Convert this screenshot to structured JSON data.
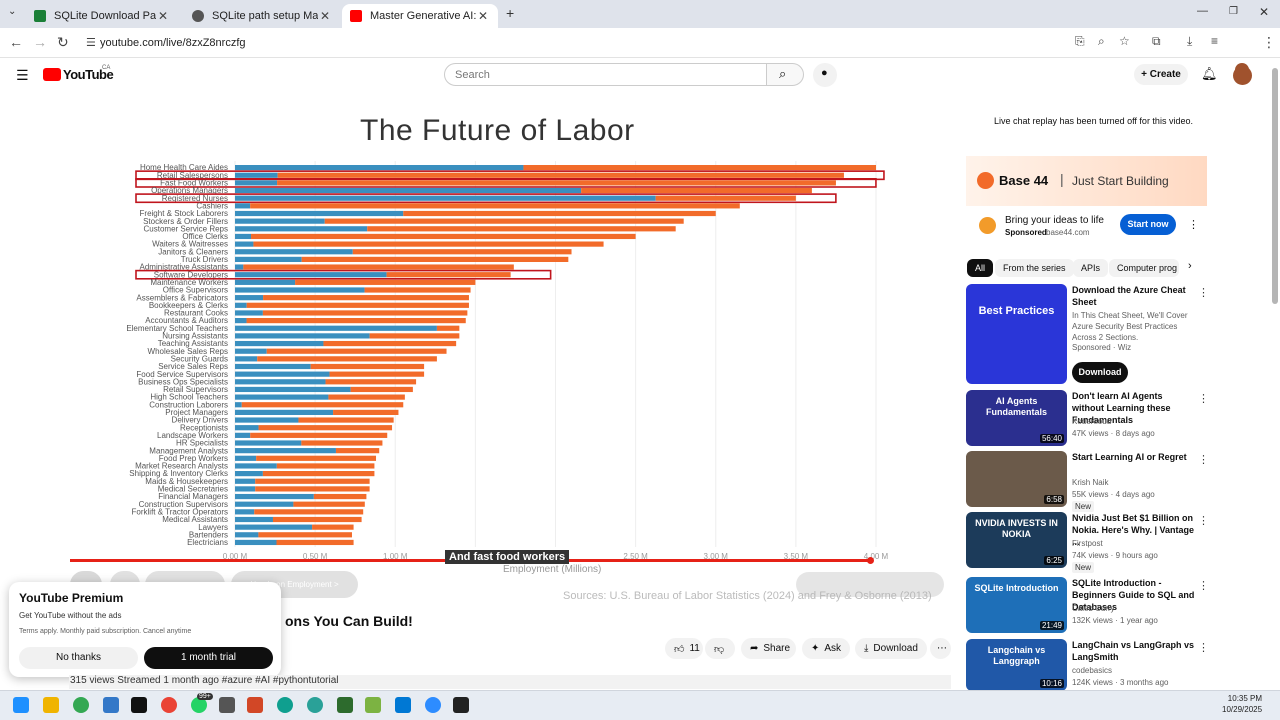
{
  "browser": {
    "tabs": [
      {
        "title": "SQLite Download Page",
        "active": false,
        "color": "#1a7f37"
      },
      {
        "title": "SQLite path setup Mac",
        "active": false,
        "color": "#444444"
      },
      {
        "title": "Master Generative AI: Real-Life",
        "active": true,
        "color": "#ff0000"
      }
    ],
    "url": "youtube.com/live/8zxZ8nrczfg"
  },
  "youtube": {
    "logo": "YouTube",
    "region": "CA",
    "search_placeholder": "Search",
    "create_label": "Create"
  },
  "video": {
    "chart_title": "The Future of Labor",
    "caption": "And fast food workers",
    "xaxis_label": "Employment (Millions)",
    "sources": "Sources: U.S. Bureau of Labor Statistics (2024) and Frey & Osborne (2013)",
    "chapter_label": "Hands-on Employment >",
    "title_fragment": "ons You Can Build!",
    "likes": "11",
    "actions": {
      "share": "Share",
      "ask": "Ask",
      "download": "Download"
    },
    "meta": "315 views  Streamed 1 month ago  #azure #AI #pythontutorial"
  },
  "premium_popup": {
    "title": "YouTube Premium",
    "subtitle": "Get YouTube without the ads",
    "terms": "Terms apply. Monthly paid subscription. Cancel anytime",
    "no_thanks": "No thanks",
    "trial": "1 month trial"
  },
  "chart_data": {
    "type": "bar",
    "title": "The Future of Labor",
    "xlabel": "Employment (Millions)",
    "xlim": [
      0,
      4.0
    ],
    "x_ticks": [
      "0.00 M",
      "0.50 M",
      "1.00 M",
      "1.50 M",
      "2.00 M",
      "2.50 M",
      "3.00 M",
      "3.50 M",
      "4.00 M"
    ],
    "highlighted": [
      "Retail Salespersons",
      "Fast Food Workers",
      "Registered Nurses",
      "Software Developers"
    ],
    "categories": [
      "Home Health Care Aides",
      "Retail Salespersons",
      "Fast Food Workers",
      "Operations Managers",
      "Registered Nurses",
      "Cashiers",
      "Freight & Stock Laborers",
      "Stockers & Order Fillers",
      "Customer Service Reps",
      "Office Clerks",
      "Waiters & Waitresses",
      "Janitors & Cleaners",
      "Truck Drivers",
      "Administrative Assistants",
      "Software Developers",
      "Maintenance Workers",
      "Office Supervisors",
      "Assemblers & Fabricators",
      "Bookkeepers & Clerks",
      "Restaurant Cooks",
      "Accountants & Auditors",
      "Elementary School Teachers",
      "Nursing Assistants",
      "Teaching Assistants",
      "Wholesale Sales Reps",
      "Security Guards",
      "Service Sales Reps",
      "Food Service Supervisors",
      "Business Ops Specialists",
      "Retail Supervisors",
      "High School Teachers",
      "Construction Laborers",
      "Project Managers",
      "Delivery Drivers",
      "Receptionists",
      "Landscape Workers",
      "HR Specialists",
      "Management Analysts",
      "Food Prep Workers",
      "Market Research Analysts",
      "Shipping & Inventory Clerks",
      "Maids & Housekeepers",
      "Medical Secretaries",
      "Financial Managers",
      "Construction Supervisors",
      "Forklift & Tractor Operators",
      "Medical Assistants",
      "Lawyers",
      "Bartenders",
      "Electricians"
    ],
    "values": [
      4.0,
      3.8,
      3.75,
      3.6,
      3.5,
      3.15,
      3.0,
      2.8,
      2.75,
      2.5,
      2.3,
      2.1,
      2.08,
      1.74,
      1.72,
      1.5,
      1.47,
      1.46,
      1.46,
      1.45,
      1.44,
      1.4,
      1.4,
      1.38,
      1.32,
      1.26,
      1.18,
      1.18,
      1.13,
      1.11,
      1.06,
      1.05,
      1.02,
      0.99,
      0.98,
      0.95,
      0.92,
      0.9,
      0.88,
      0.87,
      0.87,
      0.84,
      0.84,
      0.82,
      0.81,
      0.8,
      0.79,
      0.74,
      0.73,
      0.74
    ],
    "safe_share": [
      0.45,
      0.07,
      0.07,
      0.6,
      0.75,
      0.03,
      0.35,
      0.2,
      0.3,
      0.04,
      0.05,
      0.35,
      0.2,
      0.03,
      0.55,
      0.25,
      0.55,
      0.12,
      0.05,
      0.12,
      0.05,
      0.9,
      0.6,
      0.4,
      0.15,
      0.11,
      0.4,
      0.5,
      0.5,
      0.65,
      0.55,
      0.04,
      0.6,
      0.4,
      0.15,
      0.1,
      0.45,
      0.7,
      0.15,
      0.3,
      0.2,
      0.15,
      0.15,
      0.6,
      0.45,
      0.15,
      0.3,
      0.65,
      0.2,
      0.35
    ],
    "series_colors": {
      "safe": "#3a8fbf",
      "at_risk": "#f26b2a"
    }
  },
  "sidebar": {
    "chat_notice": "Live chat replay has been turned off for this video.",
    "ad": {
      "brand": "Base 44",
      "tagline": "Just Start Building",
      "headline": "Bring your ideas to life",
      "sponsored": "Sponsored",
      "domain": "base44.com",
      "cta": "Start now"
    },
    "chips": [
      "All",
      "From the series",
      "APIs",
      "Computer prog"
    ],
    "recommendations": [
      {
        "title": "Download the Azure Cheat Sheet",
        "channel": "In This Cheat Sheet, We'll Cover Azure Security Best Practices Across 2 Sections.",
        "meta": "Sponsored · Wiz",
        "duration": "",
        "thumb_text": "Best Practices",
        "thumb_color": "#2a36d8",
        "badge": "",
        "cta": "Download"
      },
      {
        "title": "Don't learn AI Agents without Learning these Fundamentals",
        "channel": "KodeKloud",
        "meta": "47K views · 8 days ago",
        "duration": "56:40",
        "thumb_text": "AI Agents Fundamentals",
        "thumb_color": "#2b2f8f",
        "badge": ""
      },
      {
        "title": "Start Learning AI or Regret",
        "channel": "Krish Naik",
        "meta": "55K views · 4 days ago",
        "duration": "6:58",
        "thumb_text": "",
        "thumb_color": "#6b5a4a",
        "badge": "New"
      },
      {
        "title": "Nvidia Just Bet $1 Billion on Nokia. Here's Why. | Vantage ...",
        "channel": "Firstpost",
        "meta": "74K views · 9 hours ago",
        "duration": "6:25",
        "thumb_text": "NVIDIA INVESTS IN NOKIA",
        "thumb_color": "#1c3b5a",
        "badge": "New"
      },
      {
        "title": "SQLite Introduction - Beginners Guide to SQL and Databases",
        "channel": "Caleb Curry",
        "meta": "132K views · 1 year ago",
        "duration": "21:49",
        "thumb_text": "SQLite Introduction",
        "thumb_color": "#1e6fb8",
        "badge": ""
      },
      {
        "title": "LangChain vs LangGraph vs LangSmith",
        "channel": "codebasics",
        "meta": "124K views · 3 months ago",
        "duration": "10:16",
        "thumb_text": "Langchain vs Langgraph",
        "thumb_color": "#2058a8",
        "badge": ""
      }
    ]
  },
  "taskbar": {
    "time": "10:35 PM",
    "date": "10/29/2025",
    "badge": "99+"
  }
}
